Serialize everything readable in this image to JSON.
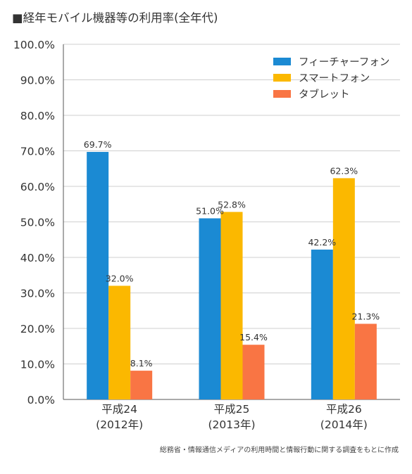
{
  "title": "■経年モバイル機器等の利用率(全年代)",
  "source_note": "総務省・情報通信メディアの利用時間と情報行動に関する調査をもとに作成",
  "colors": {
    "feature_phone": "#1b8ad3",
    "smartphone": "#fbb800",
    "tablet": "#f97544",
    "gridline": "#cfcfcf",
    "axis": "#555555",
    "text": "#333333"
  },
  "chart_data": {
    "type": "bar",
    "title": "■経年モバイル機器等の利用率(全年代)",
    "categories": [
      [
        "平成24",
        "(2012年)"
      ],
      [
        "平成25",
        "(2013年)"
      ],
      [
        "平成26",
        "(2014年)"
      ]
    ],
    "series": [
      {
        "name": "フィーチャーフォン",
        "color_key": "feature_phone",
        "values": [
          69.7,
          51.0,
          42.2
        ],
        "labels": [
          "69.7%",
          "51.0%",
          "42.2%"
        ]
      },
      {
        "name": "スマートフォン",
        "color_key": "smartphone",
        "values": [
          32.0,
          52.8,
          62.3
        ],
        "labels": [
          "32.0%",
          "52.8%",
          "62.3%"
        ]
      },
      {
        "name": "タブレット",
        "color_key": "tablet",
        "values": [
          8.1,
          15.4,
          21.3
        ],
        "labels": [
          "8.1%",
          "15.4%",
          "21.3%"
        ]
      }
    ],
    "y_ticks": [
      "0.0%",
      "10.0%",
      "20.0%",
      "30.0%",
      "40.0%",
      "50.0%",
      "60.0%",
      "70.0%",
      "80.0%",
      "90.0%",
      "100.0%"
    ],
    "ylim": [
      0,
      100
    ],
    "xlabel": "",
    "ylabel": "",
    "grid": true,
    "legend_position": "top-right"
  }
}
